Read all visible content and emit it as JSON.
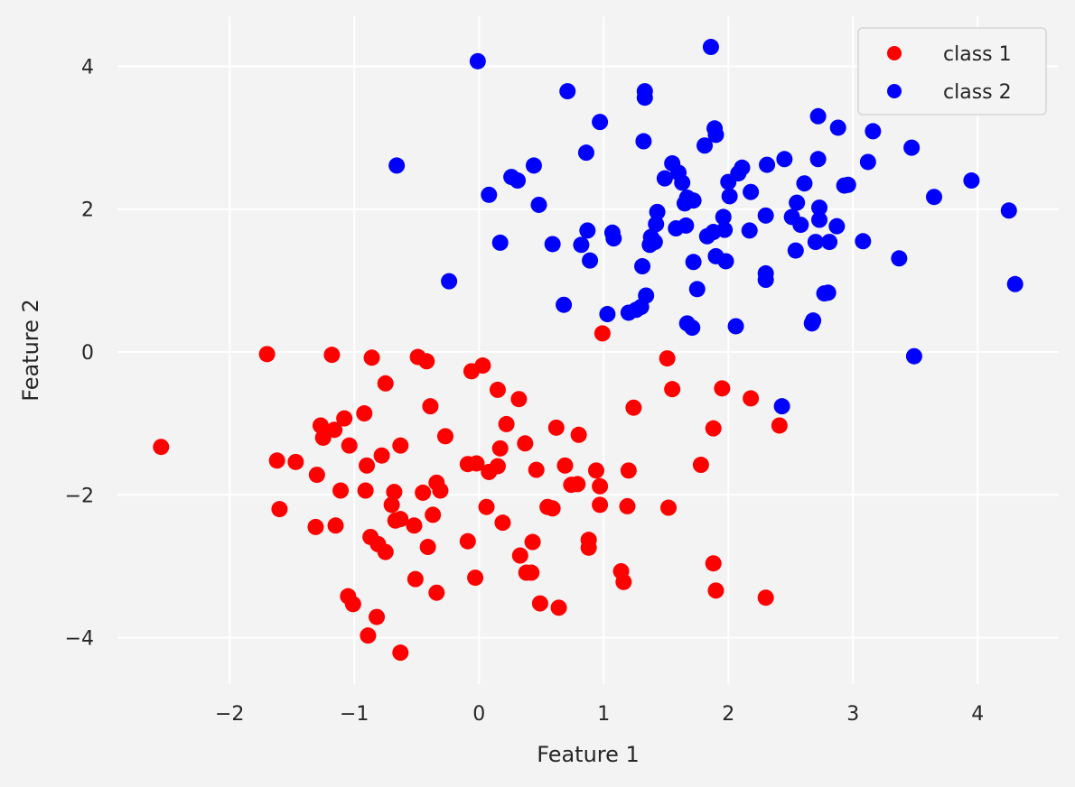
{
  "chart_data": {
    "type": "scatter",
    "title": "",
    "xlabel": "Feature 1",
    "ylabel": "Feature 2",
    "xlim": [
      -2.9,
      4.65
    ],
    "ylim": [
      -4.65,
      4.7
    ],
    "xticks": [
      -2,
      -1,
      0,
      1,
      2,
      3,
      4
    ],
    "yticks": [
      -4,
      -2,
      0,
      2,
      4
    ],
    "xtick_labels": [
      "−2",
      "−1",
      "0",
      "1",
      "2",
      "3",
      "4"
    ],
    "ytick_labels": [
      "−4",
      "−2",
      "0",
      "2",
      "4"
    ],
    "grid": true,
    "legend_position": "top-right",
    "colors": {
      "background": "#f3f3f3",
      "grid": "#ffffff",
      "text": "#262626"
    },
    "series": [
      {
        "name": "class 1",
        "color": "#ff0000",
        "points": [
          [
            -2.55,
            -1.33
          ],
          [
            -1.7,
            -0.03
          ],
          [
            -1.62,
            -1.52
          ],
          [
            -1.6,
            -2.2
          ],
          [
            -1.47,
            -1.54
          ],
          [
            -1.31,
            -2.45
          ],
          [
            -1.3,
            -1.72
          ],
          [
            -1.27,
            -1.03
          ],
          [
            -1.25,
            -1.2
          ],
          [
            -1.18,
            -0.04
          ],
          [
            -1.16,
            -1.09
          ],
          [
            -1.15,
            -2.43
          ],
          [
            -1.11,
            -1.94
          ],
          [
            -1.08,
            -0.93
          ],
          [
            -1.05,
            -3.42
          ],
          [
            -1.04,
            -1.31
          ],
          [
            -1.01,
            -3.53
          ],
          [
            -0.92,
            -0.86
          ],
          [
            -0.91,
            -1.94
          ],
          [
            -0.9,
            -1.59
          ],
          [
            -0.89,
            -3.97
          ],
          [
            -0.87,
            -2.59
          ],
          [
            -0.86,
            -0.08
          ],
          [
            -0.82,
            -3.71
          ],
          [
            -0.81,
            -2.69
          ],
          [
            -0.78,
            -1.45
          ],
          [
            -0.75,
            -2.8
          ],
          [
            -0.75,
            -0.44
          ],
          [
            -0.7,
            -2.14
          ],
          [
            -0.68,
            -1.96
          ],
          [
            -0.67,
            -2.36
          ],
          [
            -0.63,
            -2.34
          ],
          [
            -0.63,
            -4.21
          ],
          [
            -0.63,
            -1.31
          ],
          [
            -0.52,
            -2.43
          ],
          [
            -0.51,
            -3.18
          ],
          [
            -0.49,
            -0.07
          ],
          [
            -0.45,
            -1.97
          ],
          [
            -0.42,
            -0.13
          ],
          [
            -0.41,
            -2.73
          ],
          [
            -0.39,
            -0.76
          ],
          [
            -0.37,
            -2.28
          ],
          [
            -0.34,
            -3.37
          ],
          [
            -0.34,
            -1.83
          ],
          [
            -0.31,
            -1.94
          ],
          [
            -0.27,
            -1.18
          ],
          [
            -0.09,
            -2.65
          ],
          [
            -0.09,
            -1.57
          ],
          [
            -0.06,
            -0.27
          ],
          [
            -0.03,
            -3.16
          ],
          [
            -0.02,
            -1.56
          ],
          [
            0.03,
            -0.19
          ],
          [
            0.06,
            -2.17
          ],
          [
            0.08,
            -1.68
          ],
          [
            0.15,
            -0.53
          ],
          [
            0.15,
            -1.6
          ],
          [
            0.17,
            -1.35
          ],
          [
            0.19,
            -2.39
          ],
          [
            0.22,
            -1.01
          ],
          [
            0.32,
            -0.66
          ],
          [
            0.33,
            -2.85
          ],
          [
            0.37,
            -1.28
          ],
          [
            0.38,
            -3.09
          ],
          [
            0.42,
            -3.09
          ],
          [
            0.43,
            -2.66
          ],
          [
            0.46,
            -1.65
          ],
          [
            0.49,
            -3.52
          ],
          [
            0.55,
            -2.17
          ],
          [
            0.59,
            -2.19
          ],
          [
            0.62,
            -1.06
          ],
          [
            0.64,
            -3.58
          ],
          [
            0.69,
            -1.59
          ],
          [
            0.74,
            -1.86
          ],
          [
            0.79,
            -1.85
          ],
          [
            0.8,
            -1.16
          ],
          [
            0.88,
            -2.63
          ],
          [
            0.88,
            -2.74
          ],
          [
            0.94,
            -1.66
          ],
          [
            0.97,
            -2.14
          ],
          [
            0.97,
            -1.88
          ],
          [
            0.99,
            0.26
          ],
          [
            1.14,
            -3.07
          ],
          [
            1.16,
            -3.22
          ],
          [
            1.19,
            -2.16
          ],
          [
            1.2,
            -1.66
          ],
          [
            1.24,
            -0.78
          ],
          [
            1.51,
            -0.09
          ],
          [
            1.52,
            -2.18
          ],
          [
            1.55,
            -0.52
          ],
          [
            1.78,
            -1.58
          ],
          [
            1.88,
            -1.07
          ],
          [
            1.88,
            -2.96
          ],
          [
            1.9,
            -3.34
          ],
          [
            1.95,
            -0.51
          ],
          [
            2.18,
            -0.65
          ],
          [
            2.3,
            -3.44
          ],
          [
            2.41,
            -1.03
          ]
        ]
      },
      {
        "name": "class 2",
        "color": "#0000ff",
        "points": [
          [
            -0.66,
            2.61
          ],
          [
            -0.24,
            0.99
          ],
          [
            -0.01,
            4.07
          ],
          [
            0.08,
            2.2
          ],
          [
            0.17,
            1.53
          ],
          [
            0.26,
            2.45
          ],
          [
            0.31,
            2.4
          ],
          [
            0.44,
            2.61
          ],
          [
            0.48,
            2.06
          ],
          [
            0.59,
            1.51
          ],
          [
            0.68,
            0.66
          ],
          [
            0.71,
            3.65
          ],
          [
            0.82,
            1.5
          ],
          [
            0.86,
            2.79
          ],
          [
            0.87,
            1.7
          ],
          [
            0.89,
            1.28
          ],
          [
            0.97,
            3.22
          ],
          [
            1.03,
            0.53
          ],
          [
            1.07,
            1.67
          ],
          [
            1.08,
            1.59
          ],
          [
            1.2,
            0.55
          ],
          [
            1.26,
            0.59
          ],
          [
            1.3,
            0.63
          ],
          [
            1.31,
            1.2
          ],
          [
            1.32,
            2.95
          ],
          [
            1.33,
            3.56
          ],
          [
            1.33,
            3.65
          ],
          [
            1.34,
            0.79
          ],
          [
            1.37,
            1.5
          ],
          [
            1.38,
            1.61
          ],
          [
            1.41,
            1.54
          ],
          [
            1.42,
            1.79
          ],
          [
            1.43,
            1.96
          ],
          [
            1.49,
            2.43
          ],
          [
            1.55,
            2.64
          ],
          [
            1.58,
            1.73
          ],
          [
            1.6,
            2.51
          ],
          [
            1.63,
            2.37
          ],
          [
            1.65,
            2.08
          ],
          [
            1.66,
            1.77
          ],
          [
            1.67,
            0.4
          ],
          [
            1.67,
            2.16
          ],
          [
            1.71,
            0.34
          ],
          [
            1.72,
            1.26
          ],
          [
            1.72,
            2.12
          ],
          [
            1.75,
            0.88
          ],
          [
            1.81,
            2.89
          ],
          [
            1.83,
            1.62
          ],
          [
            1.86,
            4.27
          ],
          [
            1.88,
            1.68
          ],
          [
            1.89,
            3.13
          ],
          [
            1.9,
            3.04
          ],
          [
            1.9,
            1.34
          ],
          [
            1.96,
            1.89
          ],
          [
            1.97,
            1.71
          ],
          [
            1.98,
            1.27
          ],
          [
            2.0,
            2.38
          ],
          [
            2.01,
            2.18
          ],
          [
            2.06,
            0.36
          ],
          [
            2.08,
            2.5
          ],
          [
            2.11,
            2.58
          ],
          [
            2.17,
            1.7
          ],
          [
            2.18,
            2.24
          ],
          [
            2.3,
            1.1
          ],
          [
            2.3,
            1.01
          ],
          [
            2.3,
            1.91
          ],
          [
            2.31,
            2.62
          ],
          [
            2.43,
            -0.76
          ],
          [
            2.45,
            2.7
          ],
          [
            2.51,
            1.89
          ],
          [
            2.54,
            1.42
          ],
          [
            2.55,
            2.09
          ],
          [
            2.58,
            1.78
          ],
          [
            2.61,
            2.36
          ],
          [
            2.67,
            0.4
          ],
          [
            2.68,
            0.44
          ],
          [
            2.7,
            1.54
          ],
          [
            2.72,
            3.3
          ],
          [
            2.72,
            2.7
          ],
          [
            2.73,
            2.02
          ],
          [
            2.73,
            1.85
          ],
          [
            2.77,
            0.82
          ],
          [
            2.8,
            0.83
          ],
          [
            2.81,
            1.54
          ],
          [
            2.87,
            1.76
          ],
          [
            2.88,
            3.14
          ],
          [
            2.93,
            2.33
          ],
          [
            2.96,
            2.34
          ],
          [
            3.08,
            1.55
          ],
          [
            3.12,
            2.66
          ],
          [
            3.16,
            3.09
          ],
          [
            3.37,
            1.31
          ],
          [
            3.47,
            2.86
          ],
          [
            3.49,
            -0.06
          ],
          [
            3.65,
            2.17
          ],
          [
            3.95,
            2.4
          ],
          [
            4.25,
            1.98
          ],
          [
            4.3,
            0.95
          ]
        ]
      }
    ]
  }
}
